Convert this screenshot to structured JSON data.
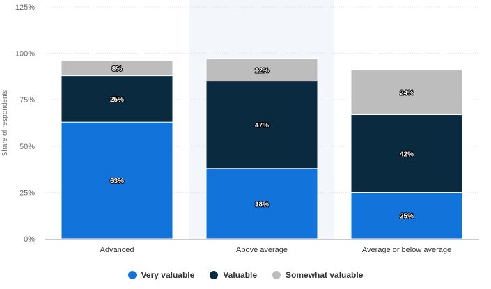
{
  "chart_data": {
    "type": "bar",
    "stacked": true,
    "categories": [
      "Advanced",
      "Above average",
      "Average or below average"
    ],
    "series": [
      {
        "name": "Very valuable",
        "values": [
          63,
          38,
          25
        ],
        "labels": [
          "63%",
          "38%",
          "25%"
        ],
        "color": "#1274DB"
      },
      {
        "name": "Valuable",
        "values": [
          25,
          47,
          42
        ],
        "labels": [
          "25%",
          "47%",
          "42%"
        ],
        "color": "#0A2A3F"
      },
      {
        "name": "Somewhat valuable",
        "values": [
          8,
          12,
          24
        ],
        "labels": [
          "8%",
          "12%",
          "24%"
        ],
        "color": "#BDBDBD"
      }
    ],
    "ylabel": "Share of respondents",
    "ylim": [
      0,
      125
    ],
    "yticks": [
      "0%",
      "25%",
      "50%",
      "75%",
      "100%",
      "125%"
    ],
    "grid": true,
    "highlighted_category": "Above average",
    "legend_position": "bottom-center"
  }
}
